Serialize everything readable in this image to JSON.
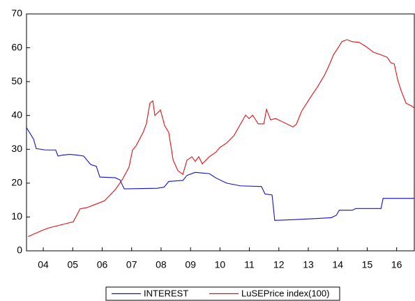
{
  "chart_data": {
    "type": "line",
    "xlim": [
      3.93,
      17.1
    ],
    "xticks": [
      {
        "value": 4.5,
        "label": "04"
      },
      {
        "value": 5.5,
        "label": "05"
      },
      {
        "value": 6.5,
        "label": "06"
      },
      {
        "value": 7.5,
        "label": "07"
      },
      {
        "value": 8.5,
        "label": "08"
      },
      {
        "value": 9.5,
        "label": "09"
      },
      {
        "value": 10.5,
        "label": "10"
      },
      {
        "value": 11.5,
        "label": "11"
      },
      {
        "value": 12.5,
        "label": "12"
      },
      {
        "value": 13.5,
        "label": "13"
      },
      {
        "value": 14.5,
        "label": "14"
      },
      {
        "value": 15.5,
        "label": "15"
      },
      {
        "value": 16.5,
        "label": "16"
      }
    ],
    "ylim": [
      0,
      70
    ],
    "yticks": [
      0,
      10,
      20,
      30,
      40,
      50,
      60,
      70
    ],
    "grid": false,
    "legend": "bottom",
    "series": [
      {
        "name": "INTEREST",
        "color": "#1010d0",
        "x": [
          3.93,
          4.17,
          4.26,
          4.57,
          4.92,
          5.0,
          5.16,
          5.4,
          5.64,
          5.87,
          6.11,
          6.3,
          6.42,
          6.94,
          7.1,
          7.25,
          8.36,
          8.6,
          8.76,
          9.24,
          9.38,
          9.66,
          9.9,
          10.14,
          10.37,
          10.73,
          11.2,
          11.91,
          12.03,
          12.27,
          12.36,
          12.98,
          13.69,
          14.28,
          14.45,
          14.55,
          15.0,
          15.11,
          15.97,
          16.04,
          17.1
        ],
        "values": [
          36.4,
          33,
          30.2,
          29.8,
          29.8,
          28,
          28.3,
          28.5,
          28.3,
          28,
          25.5,
          25,
          21.8,
          21.6,
          21,
          18.3,
          18.5,
          18.8,
          20.5,
          20.8,
          22.3,
          23.2,
          23,
          22.8,
          21.5,
          20,
          19.2,
          19,
          16.8,
          16.5,
          9,
          9.2,
          9.5,
          9.8,
          10.5,
          12,
          12,
          12.5,
          12.5,
          15.5,
          15.5
        ]
      },
      {
        "name": "LuSEPrice index(100)",
        "color": "#e01010",
        "x": [
          3.98,
          4.45,
          4.69,
          5.16,
          5.52,
          5.75,
          5.99,
          6.23,
          6.58,
          6.94,
          7.18,
          7.41,
          7.53,
          7.65,
          7.89,
          8.0,
          8.12,
          8.22,
          8.29,
          8.48,
          8.62,
          8.76,
          8.91,
          9.07,
          9.24,
          9.38,
          9.55,
          9.66,
          9.78,
          9.9,
          10.14,
          10.37,
          10.49,
          10.73,
          10.97,
          11.2,
          11.37,
          11.49,
          11.61,
          11.8,
          11.99,
          12.08,
          12.22,
          12.39,
          12.63,
          12.98,
          13.1,
          13.27,
          13.57,
          13.81,
          14.05,
          14.17,
          14.36,
          14.52,
          14.64,
          14.81,
          15.0,
          15.23,
          15.47,
          15.71,
          15.94,
          16.18,
          16.3,
          16.42,
          16.54,
          16.65,
          16.82,
          17.01,
          17.1
        ],
        "values": [
          4.2,
          6,
          6.8,
          7.8,
          8.6,
          12.4,
          12.8,
          13.6,
          14.8,
          18,
          21,
          24.7,
          29.8,
          31,
          35,
          37.5,
          43.6,
          44.3,
          40,
          41.6,
          37,
          35,
          26.8,
          23.7,
          22.6,
          26.8,
          27.8,
          26.4,
          27.8,
          25.7,
          27.8,
          29.2,
          30.5,
          31.9,
          34,
          37.5,
          40.1,
          39.1,
          40.1,
          37.5,
          37.5,
          41.8,
          38.7,
          39.1,
          38.1,
          36.6,
          37.5,
          41.2,
          45.3,
          48.4,
          51.9,
          54.1,
          58,
          60.1,
          61.8,
          62.4,
          61.8,
          61.6,
          60.3,
          58.7,
          58,
          57.2,
          55.6,
          55.2,
          50.4,
          47.4,
          43.6,
          42.8,
          42.2
        ]
      }
    ]
  }
}
